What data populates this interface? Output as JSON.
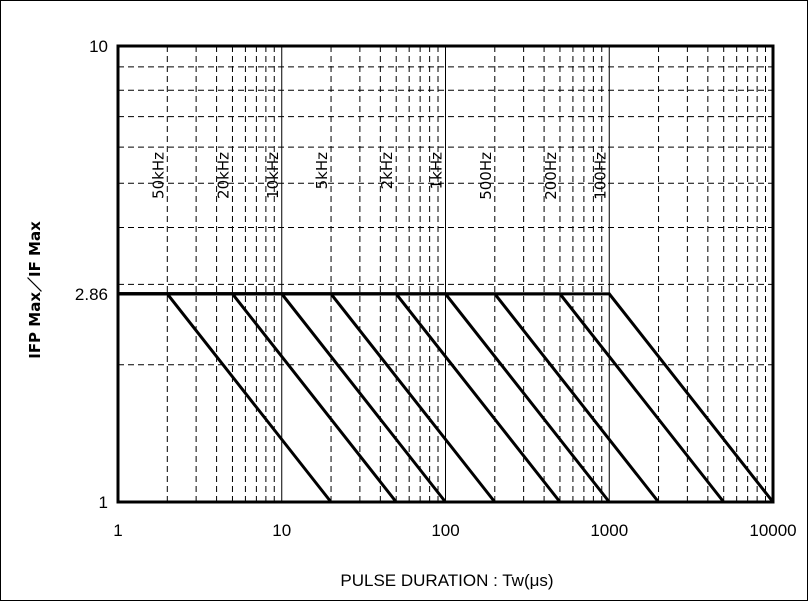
{
  "chart_data": {
    "type": "line",
    "xlabel": "PULSE DURATION : Tw(μs)",
    "ylabel": "IFP Max／IF Max",
    "xscale": "log",
    "yscale": "log",
    "xlim": [
      1,
      10000
    ],
    "ylim": [
      1,
      10
    ],
    "grid": true,
    "xticks": [
      "1",
      "10",
      "100",
      "1000",
      "10000"
    ],
    "yticks": [
      "1",
      "2.86",
      "10"
    ],
    "ytick_values": [
      1,
      2.86,
      10
    ],
    "plateau": 2.86,
    "series": [
      {
        "name": "50kHz",
        "x": [
          1,
          2,
          20
        ],
        "y": [
          2.86,
          2.86,
          1
        ]
      },
      {
        "name": "20kHz",
        "x": [
          1,
          5,
          50
        ],
        "y": [
          2.86,
          2.86,
          1
        ]
      },
      {
        "name": "10kHz",
        "x": [
          1,
          10,
          100
        ],
        "y": [
          2.86,
          2.86,
          1
        ]
      },
      {
        "name": "5kHz",
        "x": [
          1,
          20,
          200
        ],
        "y": [
          2.86,
          2.86,
          1
        ]
      },
      {
        "name": "2kHz",
        "x": [
          1,
          50,
          500
        ],
        "y": [
          2.86,
          2.86,
          1
        ]
      },
      {
        "name": "1kHz",
        "x": [
          1,
          100,
          1000
        ],
        "y": [
          2.86,
          2.86,
          1
        ]
      },
      {
        "name": "500Hz",
        "x": [
          1,
          200,
          2000
        ],
        "y": [
          2.86,
          2.86,
          1
        ]
      },
      {
        "name": "200Hz",
        "x": [
          1,
          500,
          5000
        ],
        "y": [
          2.86,
          2.86,
          1
        ]
      },
      {
        "name": "100Hz",
        "x": [
          1,
          1000,
          10000
        ],
        "y": [
          2.86,
          2.86,
          1
        ]
      }
    ],
    "series_label_x": [
      2,
      5,
      10,
      20,
      50,
      100,
      200,
      500,
      1000
    ]
  }
}
